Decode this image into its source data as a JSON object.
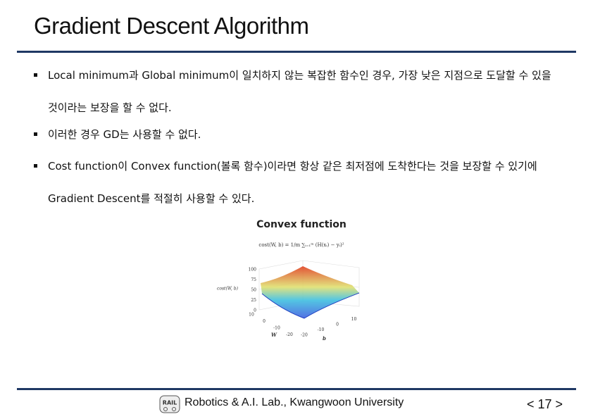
{
  "header": {
    "title": "Gradient Descent Algorithm"
  },
  "bullets": [
    "Local minimum과 Global minimum이 일치하지 않는 복잡한 함수인 경우, 가장 낮은 지점으로 도달할 수 있을 것이라는 보장을 할 수 없다.",
    "이러한 경우 GD는 사용할 수 없다.",
    "Cost function이 Convex function(볼록 함수)이라면 항상 같은 최저점에 도착한다는 것을 보장할 수 있기에 Gradient Descent를 적절히 사용할 수 있다."
  ],
  "figure": {
    "title": "Convex function",
    "formula": "cost(W, b) = 1/m ∑ᵢ₌₁ᵐ (H(xᵢ) − yᵢ)²",
    "z_axis_label": "cost(W, b)",
    "z_ticks": [
      "100",
      "75",
      "50",
      "25",
      "0"
    ],
    "w_ticks": [
      "10",
      "0",
      "-10",
      "-20"
    ],
    "b_ticks": [
      "-20",
      "-10",
      "0",
      "10"
    ],
    "w_label": "W",
    "b_label": "b"
  },
  "footer": {
    "logo": "RAIL",
    "organization": "Robotics & A.I. Lab., Kwangwoon University",
    "page": "< 17 >"
  }
}
